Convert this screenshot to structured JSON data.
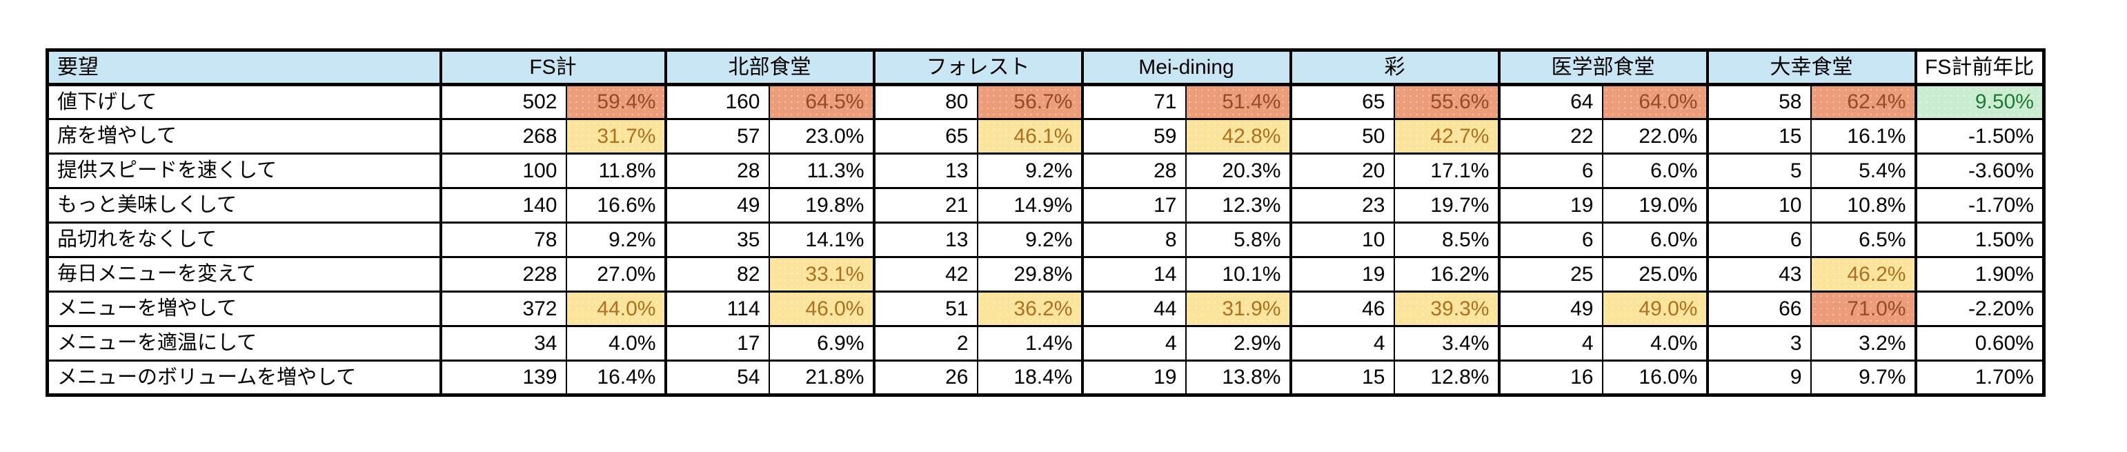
{
  "colors": {
    "header_bg": "#c9e6f4",
    "orange_bg": "#ec9c79",
    "orange_text": "#964b28",
    "yellow_bg": "#fbe49c",
    "yellow_text": "#b06f1e",
    "green_bg": "#cbeed3",
    "green_text": "#1e7a34"
  },
  "chart_data": {
    "type": "table",
    "columns": {
      "corner": "要望",
      "groups": [
        "FS計",
        "北部食堂",
        "フォレスト",
        "Mei-dining",
        "彩",
        "医学部食堂",
        "大幸食堂"
      ],
      "yoy": "FS計前年比"
    },
    "rows": [
      {
        "label": "値下げして",
        "values": [
          [
            502,
            "59.4%"
          ],
          [
            160,
            "64.5%"
          ],
          [
            80,
            "56.7%"
          ],
          [
            71,
            "51.4%"
          ],
          [
            65,
            "55.6%"
          ],
          [
            64,
            "64.0%"
          ],
          [
            58,
            "62.4%"
          ]
        ],
        "highlights": [
          "orange",
          "orange",
          "orange",
          "orange",
          "orange",
          "orange",
          "orange"
        ],
        "yoy": "9.50%",
        "yoy_highlight": "green"
      },
      {
        "label": "席を増やして",
        "values": [
          [
            268,
            "31.7%"
          ],
          [
            57,
            "23.0%"
          ],
          [
            65,
            "46.1%"
          ],
          [
            59,
            "42.8%"
          ],
          [
            50,
            "42.7%"
          ],
          [
            22,
            "22.0%"
          ],
          [
            15,
            "16.1%"
          ]
        ],
        "highlights": [
          "yellow",
          "",
          "yellow",
          "yellow",
          "yellow",
          "",
          ""
        ],
        "yoy": "-1.50%",
        "yoy_highlight": ""
      },
      {
        "label": "提供スピードを速くして",
        "values": [
          [
            100,
            "11.8%"
          ],
          [
            28,
            "11.3%"
          ],
          [
            13,
            "9.2%"
          ],
          [
            28,
            "20.3%"
          ],
          [
            20,
            "17.1%"
          ],
          [
            6,
            "6.0%"
          ],
          [
            5,
            "5.4%"
          ]
        ],
        "highlights": [
          "",
          "",
          "",
          "",
          "",
          "",
          ""
        ],
        "yoy": "-3.60%",
        "yoy_highlight": ""
      },
      {
        "label": "もっと美味しくして",
        "values": [
          [
            140,
            "16.6%"
          ],
          [
            49,
            "19.8%"
          ],
          [
            21,
            "14.9%"
          ],
          [
            17,
            "12.3%"
          ],
          [
            23,
            "19.7%"
          ],
          [
            19,
            "19.0%"
          ],
          [
            10,
            "10.8%"
          ]
        ],
        "highlights": [
          "",
          "",
          "",
          "",
          "",
          "",
          ""
        ],
        "yoy": "-1.70%",
        "yoy_highlight": ""
      },
      {
        "label": "品切れをなくして",
        "values": [
          [
            78,
            "9.2%"
          ],
          [
            35,
            "14.1%"
          ],
          [
            13,
            "9.2%"
          ],
          [
            8,
            "5.8%"
          ],
          [
            10,
            "8.5%"
          ],
          [
            6,
            "6.0%"
          ],
          [
            6,
            "6.5%"
          ]
        ],
        "highlights": [
          "",
          "",
          "",
          "",
          "",
          "",
          ""
        ],
        "yoy": "1.50%",
        "yoy_highlight": ""
      },
      {
        "label": "毎日メニューを変えて",
        "values": [
          [
            228,
            "27.0%"
          ],
          [
            82,
            "33.1%"
          ],
          [
            42,
            "29.8%"
          ],
          [
            14,
            "10.1%"
          ],
          [
            19,
            "16.2%"
          ],
          [
            25,
            "25.0%"
          ],
          [
            43,
            "46.2%"
          ]
        ],
        "highlights": [
          "",
          "yellow",
          "",
          "",
          "",
          "",
          "yellow"
        ],
        "yoy": "1.90%",
        "yoy_highlight": ""
      },
      {
        "label": "メニューを増やして",
        "values": [
          [
            372,
            "44.0%"
          ],
          [
            114,
            "46.0%"
          ],
          [
            51,
            "36.2%"
          ],
          [
            44,
            "31.9%"
          ],
          [
            46,
            "39.3%"
          ],
          [
            49,
            "49.0%"
          ],
          [
            66,
            "71.0%"
          ]
        ],
        "highlights": [
          "yellow",
          "yellow",
          "yellow",
          "yellow",
          "yellow",
          "yellow",
          "orange"
        ],
        "yoy": "-2.20%",
        "yoy_highlight": ""
      },
      {
        "label": "メニューを適温にして",
        "values": [
          [
            34,
            "4.0%"
          ],
          [
            17,
            "6.9%"
          ],
          [
            2,
            "1.4%"
          ],
          [
            4,
            "2.9%"
          ],
          [
            4,
            "3.4%"
          ],
          [
            4,
            "4.0%"
          ],
          [
            3,
            "3.2%"
          ]
        ],
        "highlights": [
          "",
          "",
          "",
          "",
          "",
          "",
          ""
        ],
        "yoy": "0.60%",
        "yoy_highlight": ""
      },
      {
        "label": "メニューのボリュームを増やして",
        "values": [
          [
            139,
            "16.4%"
          ],
          [
            54,
            "21.8%"
          ],
          [
            26,
            "18.4%"
          ],
          [
            19,
            "13.8%"
          ],
          [
            15,
            "12.8%"
          ],
          [
            16,
            "16.0%"
          ],
          [
            9,
            "9.7%"
          ]
        ],
        "highlights": [
          "",
          "",
          "",
          "",
          "",
          "",
          ""
        ],
        "yoy": "1.70%",
        "yoy_highlight": ""
      }
    ]
  }
}
